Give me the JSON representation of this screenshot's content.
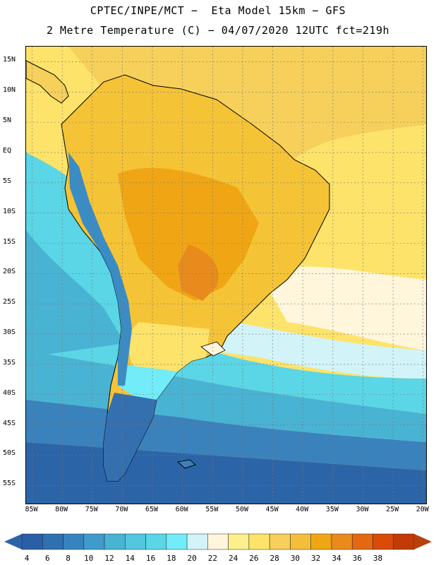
{
  "title": {
    "line1": "CPTEC/INPE/MCT −  Eta Model 15km − GFS",
    "line2": "2 Metre Temperature (C) − 04/07/2020 12UTC fct=219h"
  },
  "map": {
    "lat_labels": [
      "15N",
      "10N",
      "5N",
      "EQ",
      "5S",
      "10S",
      "15S",
      "20S",
      "25S",
      "30S",
      "35S",
      "40S",
      "45S",
      "50S",
      "55S"
    ],
    "lat_values": [
      15,
      10,
      5,
      0,
      -5,
      -10,
      -15,
      -20,
      -25,
      -30,
      -35,
      -40,
      -45,
      -50,
      -55
    ],
    "lon_labels": [
      "85W",
      "80W",
      "75W",
      "70W",
      "65W",
      "60W",
      "55W",
      "50W",
      "45W",
      "40W",
      "35W",
      "30W",
      "25W",
      "20W"
    ],
    "lon_values": [
      -85,
      -80,
      -75,
      -70,
      -65,
      -60,
      -55,
      -50,
      -45,
      -40,
      -35,
      -30,
      -25,
      -20
    ],
    "lat_range": [
      -58,
      17.5
    ],
    "lon_range": [
      -86,
      -19.5
    ],
    "temperature_zones": [
      {
        "name": "ocean-south-deep",
        "temp": 4,
        "color": "#2c64a8"
      },
      {
        "name": "ocean-south",
        "temp": 8,
        "color": "#3a82bc"
      },
      {
        "name": "ocean-mid-south",
        "temp": 12,
        "color": "#49b3d4"
      },
      {
        "name": "ocean-mid",
        "temp": 16,
        "color": "#5ad6e6"
      },
      {
        "name": "ocean-subtropical",
        "temp": 20,
        "color": "#d2f4f9"
      },
      {
        "name": "ocean-subtropical-warm",
        "temp": 22,
        "color": "#fff6dc"
      },
      {
        "name": "ocean-tropical",
        "temp": 24,
        "color": "#fdea80"
      },
      {
        "name": "land-tropical",
        "temp": 28,
        "color": "#f5c336"
      },
      {
        "name": "land-hot",
        "temp": 32,
        "color": "#f0a614"
      },
      {
        "name": "land-hottest",
        "temp": 34,
        "color": "#e98b1c"
      },
      {
        "name": "andes",
        "temp": 10,
        "color": "#3b8cc4"
      },
      {
        "name": "patagonia",
        "temp": 6,
        "color": "#346fb0"
      }
    ]
  },
  "colorbar": {
    "labels": [
      "4",
      "6",
      "8",
      "10",
      "12",
      "14",
      "16",
      "18",
      "20",
      "22",
      "24",
      "26",
      "28",
      "30",
      "32",
      "34",
      "36",
      "38"
    ],
    "colors": [
      "#2a5fa8",
      "#2f70b3",
      "#3883be",
      "#3f9bca",
      "#49b3d4",
      "#52c7de",
      "#5ad6e6",
      "#72ecf8",
      "#d2f4f9",
      "#fff6dc",
      "#fdf08c",
      "#fde36a",
      "#f6d05a",
      "#f3bf3a",
      "#f0a614",
      "#e98b1c",
      "#e36810",
      "#d84c08",
      "#c23a06"
    ],
    "under_color": "#2c64a8",
    "over_color": "#b8400c"
  }
}
